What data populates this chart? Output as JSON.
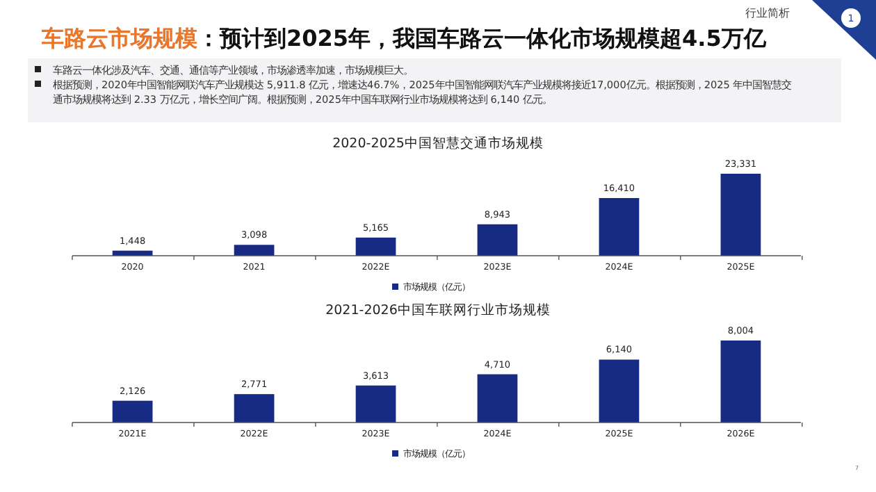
{
  "chart_data": [
    {
      "type": "other",
      "title": "车路云市场规模",
      "subtitle": "：预计到2025年，我国车路云一体化市场规模超4.5万亿",
      "annotations": [
        "行业简析",
        "1",
        "车路云一体化涉及汽车、交通、通信等产业领域，市场渗透率加速，市场规模巨大。",
        "根据预测，2020年中国智能网联汽车产业规模达 5,911.8 亿元，增速达46.7%，2025年中国智能网联汽车产业规模将接近17,000亿元。根据预测，2025 年中国智慧交通市场规模将达到 2.33 万亿元，增长空间广阔。根据预测，2025年中国车联网行业市场规模将达到 6,140 亿元。",
        "7"
      ]
    },
    {
      "type": "bar",
      "title": "2020-2025中国智慧交通市场规模",
      "categories": [
        "2020",
        "2021",
        "2022E",
        "2023E",
        "2024E",
        "2025E"
      ],
      "legend": "bottom",
      "series": [
        {
          "name": "市场规模（亿元）",
          "color": "#172b85",
          "values": [
            1448,
            3098,
            5165,
            8943,
            16410,
            23331
          ],
          "value_labels": [
            "1,448",
            "3,098",
            "5,165",
            "8,943",
            "16,410",
            "23,331"
          ]
        }
      ]
    },
    {
      "type": "bar",
      "title": "2021-2026中国车联网行业市场规模",
      "categories": [
        "2021E",
        "2022E",
        "2023E",
        "2024E",
        "2025E",
        "2026E"
      ],
      "legend": "bottom",
      "series": [
        {
          "name": "市场规模（亿元）",
          "color": "#172b85",
          "values": [
            2126,
            2771,
            3613,
            4710,
            6140,
            8004
          ],
          "value_labels": [
            "2,126",
            "2,771",
            "3,613",
            "4,710",
            "6,140",
            "8,004"
          ]
        }
      ]
    }
  ]
}
